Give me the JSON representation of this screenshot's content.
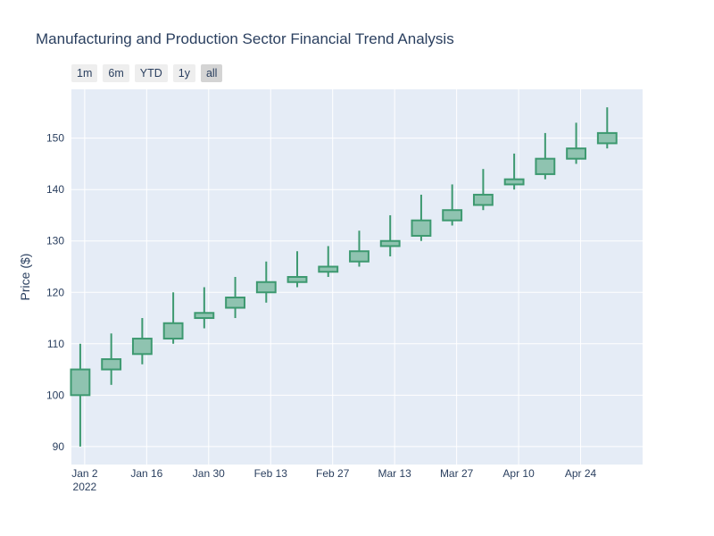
{
  "title": "Manufacturing and Production Sector Financial Trend Analysis",
  "range_selector": {
    "buttons": [
      "1m",
      "6m",
      "YTD",
      "1y",
      "all"
    ],
    "active": "all"
  },
  "colors": {
    "plot_bg": "#e5ecf6",
    "grid": "#ffffff",
    "candle_fill": "#8fc3b0",
    "candle_line": "#3d9970",
    "text": "#2a3f5f"
  },
  "chart_data": {
    "type": "candlestick",
    "title": "Manufacturing and Production Sector Financial Trend Analysis",
    "ylabel": "Price ($)",
    "xlabel": "",
    "ylim": [
      86.5,
      159.5
    ],
    "xlim": [
      "2021-12-30",
      "2022-05-08"
    ],
    "grid": true,
    "x_ticks": [
      {
        "date": "2022-01-02",
        "label": "Jan 2",
        "sublabel": "2022"
      },
      {
        "date": "2022-01-16",
        "label": "Jan 16",
        "sublabel": ""
      },
      {
        "date": "2022-01-30",
        "label": "Jan 30",
        "sublabel": ""
      },
      {
        "date": "2022-02-13",
        "label": "Feb 13",
        "sublabel": ""
      },
      {
        "date": "2022-02-27",
        "label": "Feb 27",
        "sublabel": ""
      },
      {
        "date": "2022-03-13",
        "label": "Mar 13",
        "sublabel": ""
      },
      {
        "date": "2022-03-27",
        "label": "Mar 27",
        "sublabel": ""
      },
      {
        "date": "2022-04-10",
        "label": "Apr 10",
        "sublabel": ""
      },
      {
        "date": "2022-04-24",
        "label": "Apr 24",
        "sublabel": ""
      }
    ],
    "y_ticks": [
      90,
      100,
      110,
      120,
      130,
      140,
      150
    ],
    "candles": [
      {
        "date": "2022-01-01",
        "open": 100,
        "high": 110,
        "low": 90,
        "close": 105
      },
      {
        "date": "2022-01-08",
        "open": 105,
        "high": 112,
        "low": 102,
        "close": 107
      },
      {
        "date": "2022-01-15",
        "open": 108,
        "high": 115,
        "low": 106,
        "close": 111
      },
      {
        "date": "2022-01-22",
        "open": 111,
        "high": 120,
        "low": 110,
        "close": 114
      },
      {
        "date": "2022-01-29",
        "open": 115,
        "high": 121,
        "low": 113,
        "close": 116
      },
      {
        "date": "2022-02-05",
        "open": 117,
        "high": 123,
        "low": 115,
        "close": 119
      },
      {
        "date": "2022-02-12",
        "open": 120,
        "high": 126,
        "low": 118,
        "close": 122
      },
      {
        "date": "2022-02-19",
        "open": 122,
        "high": 128,
        "low": 121,
        "close": 123
      },
      {
        "date": "2022-02-26",
        "open": 124,
        "high": 129,
        "low": 123,
        "close": 125
      },
      {
        "date": "2022-03-05",
        "open": 126,
        "high": 132,
        "low": 125,
        "close": 128
      },
      {
        "date": "2022-03-12",
        "open": 129,
        "high": 135,
        "low": 127,
        "close": 130
      },
      {
        "date": "2022-03-19",
        "open": 131,
        "high": 139,
        "low": 130,
        "close": 134
      },
      {
        "date": "2022-03-26",
        "open": 134,
        "high": 141,
        "low": 133,
        "close": 136
      },
      {
        "date": "2022-04-02",
        "open": 137,
        "high": 144,
        "low": 136,
        "close": 139
      },
      {
        "date": "2022-04-09",
        "open": 141,
        "high": 147,
        "low": 140,
        "close": 142
      },
      {
        "date": "2022-04-16",
        "open": 143,
        "high": 151,
        "low": 142,
        "close": 146
      },
      {
        "date": "2022-04-23",
        "open": 146,
        "high": 153,
        "low": 145,
        "close": 148
      },
      {
        "date": "2022-04-30",
        "open": 149,
        "high": 156,
        "low": 148,
        "close": 151
      }
    ]
  }
}
